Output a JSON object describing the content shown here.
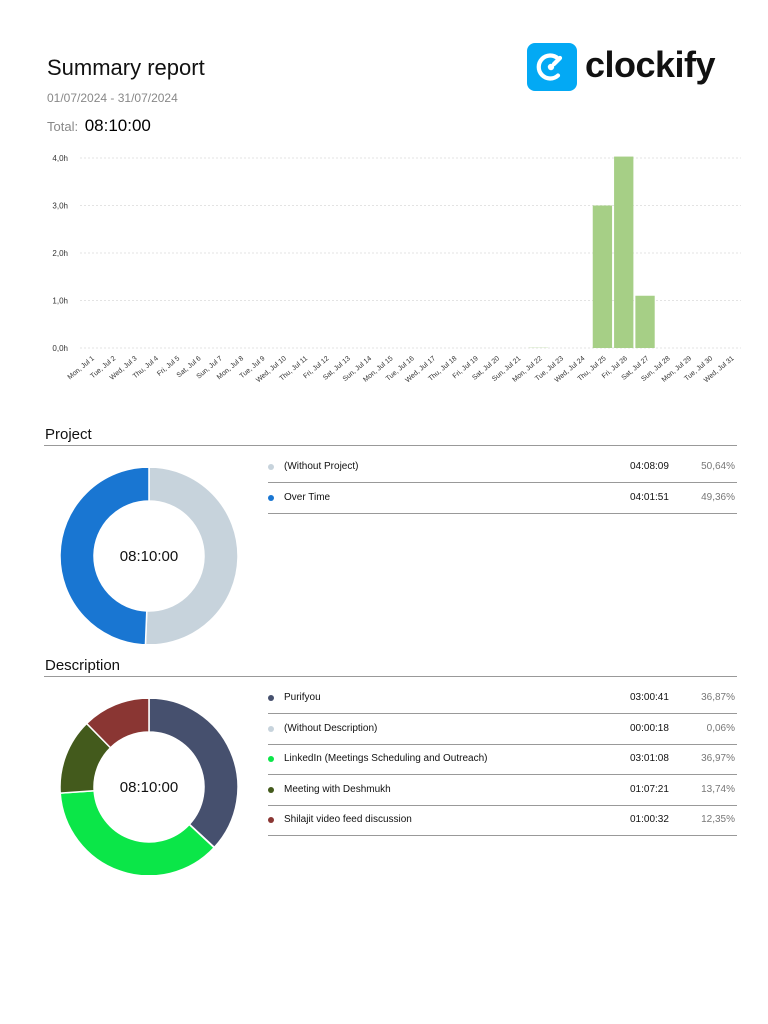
{
  "report": {
    "title": "Summary report",
    "date_range": "01/07/2024 - 31/07/2024",
    "total_label": "Total:",
    "total_value": "08:10:00"
  },
  "logo": {
    "text": "clockify",
    "icon": "clockify-logo-icon",
    "color": "#03a9f4"
  },
  "chart_data": [
    {
      "type": "bar",
      "categories": [
        "Mon, Jul 1",
        "Tue, Jul 2",
        "Wed, Jul 3",
        "Thu, Jul 4",
        "Fri, Jul 5",
        "Sat, Jul 6",
        "Sun, Jul 7",
        "Mon, Jul 8",
        "Tue, Jul 9",
        "Wed, Jul 10",
        "Thu, Jul 11",
        "Fri, Jul 12",
        "Sat, Jul 13",
        "Sun, Jul 14",
        "Mon, Jul 15",
        "Tue, Jul 16",
        "Wed, Jul 17",
        "Thu, Jul 18",
        "Fri, Jul 19",
        "Sat, Jul 20",
        "Sun, Jul 21",
        "Mon, Jul 22",
        "Tue, Jul 23",
        "Wed, Jul 24",
        "Thu, Jul 25",
        "Fri, Jul 26",
        "Sat, Jul 27",
        "Sun, Jul 28",
        "Mon, Jul 29",
        "Tue, Jul 30",
        "Wed, Jul 31"
      ],
      "values": [
        0,
        0,
        0,
        0,
        0,
        0,
        0,
        0,
        0,
        0,
        0,
        0,
        0,
        0,
        0,
        0,
        0,
        0,
        0,
        0,
        0,
        0.005,
        0,
        0,
        3.0,
        4.03,
        1.1,
        0,
        0,
        0,
        0
      ],
      "yticks": [
        0,
        1,
        2,
        3,
        4
      ],
      "ytick_labels": [
        "0,0h",
        "1,0h",
        "2,0h",
        "3,0h",
        "4,0h"
      ],
      "ylim": [
        0,
        4
      ],
      "grid": true,
      "color": "#a6cf86"
    },
    {
      "type": "pie",
      "section": "Project",
      "center_label": "08:10:00",
      "slices": [
        {
          "name": "(Without Project)",
          "duration": "04:08:09",
          "percent_label": "50,64%",
          "value": 50.64,
          "color": "#c7d3dc"
        },
        {
          "name": "Over Time",
          "duration": "04:01:51",
          "percent_label": "49,36%",
          "value": 49.36,
          "color": "#1976d2"
        }
      ]
    },
    {
      "type": "pie",
      "section": "Description",
      "center_label": "08:10:00",
      "slices": [
        {
          "name": "Purifyou",
          "duration": "03:00:41",
          "percent_label": "36,87%",
          "value": 36.87,
          "color": "#46506e"
        },
        {
          "name": "(Without Description)",
          "duration": "00:00:18",
          "percent_label": "0,06%",
          "value": 0.06,
          "color": "#c7d3dc"
        },
        {
          "name": "LinkedIn (Meetings Scheduling and Outreach)",
          "duration": "03:01:08",
          "percent_label": "36,97%",
          "value": 36.97,
          "color": "#0be648"
        },
        {
          "name": "Meeting with Deshmukh",
          "duration": "01:07:21",
          "percent_label": "13,74%",
          "value": 13.74,
          "color": "#435a1c"
        },
        {
          "name": "Shilajit video feed discussion",
          "duration": "01:00:32",
          "percent_label": "12,35%",
          "value": 12.35,
          "color": "#8a3633"
        }
      ]
    }
  ]
}
